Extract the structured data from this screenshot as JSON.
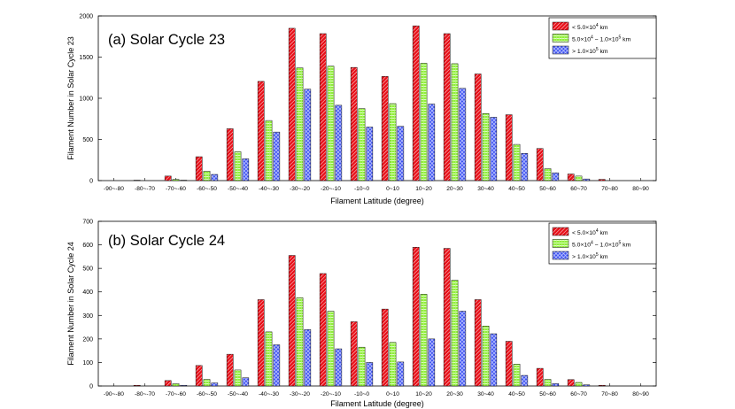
{
  "chart_data": [
    {
      "type": "bar",
      "title": "(a) Solar Cycle 23",
      "xlabel": "Filament Latitude (degree)",
      "ylabel": "Filament Number in Solar Cycle 23",
      "ylim": [
        0,
        2000
      ],
      "yticks": [
        0,
        500,
        1000,
        1500,
        2000
      ],
      "grid": false,
      "legend_position": "top-right",
      "categories": [
        "-90~-80",
        "-80~-70",
        "-70~-60",
        "-60~-50",
        "-50~-40",
        "-40~-30",
        "-30~-20",
        "-20~-10",
        "-10~0",
        "0~10",
        "10~20",
        "20~30",
        "30~40",
        "40~50",
        "50~60",
        "60~70",
        "70~80",
        "80~90"
      ],
      "series": [
        {
          "name": "< 5.0×10^4 km",
          "legend_main": "< 5.0×10",
          "legend_sup": "4",
          "legend_tail": " km",
          "color": "#e8111a",
          "hatch": "diag",
          "values": [
            0,
            5,
            55,
            290,
            630,
            1205,
            1850,
            1785,
            1375,
            1265,
            1880,
            1785,
            1295,
            800,
            390,
            80,
            15,
            0
          ]
        },
        {
          "name": "5.0×10^4 ~ 1.0×10^5 km",
          "legend_main": "5.0×10",
          "legend_sup": "4",
          "legend_mid": " ~ 1.0×10",
          "legend_sup2": "5",
          "legend_tail": " km",
          "color": "#90ee3a",
          "hatch": "horiz",
          "values": [
            0,
            0,
            15,
            115,
            350,
            730,
            1370,
            1390,
            875,
            935,
            1425,
            1420,
            815,
            440,
            145,
            55,
            0,
            0
          ]
        },
        {
          "name": "> 1.0×10^5 km",
          "legend_main": "> 1.0×10",
          "legend_sup": "5",
          "legend_tail": " km",
          "color": "#3a4ef0",
          "hatch": "cross",
          "values": [
            0,
            0,
            5,
            75,
            265,
            590,
            1110,
            915,
            650,
            660,
            930,
            1120,
            770,
            330,
            95,
            20,
            0,
            0
          ]
        }
      ]
    },
    {
      "type": "bar",
      "title": "(b) Solar Cycle 24",
      "xlabel": "Filament Latitude (degree)",
      "ylabel": "Filament Number in Solar Cycle 24",
      "ylim": [
        0,
        700
      ],
      "yticks": [
        0,
        100,
        200,
        300,
        400,
        500,
        600,
        700
      ],
      "grid": false,
      "legend_position": "top-right",
      "categories": [
        "-90~-80",
        "-80~-70",
        "-70~-60",
        "-60~-50",
        "-50~-40",
        "-40~-30",
        "-30~-20",
        "-20~-10",
        "-10~0",
        "0~10",
        "10~20",
        "20~30",
        "30~40",
        "40~50",
        "50~60",
        "60~70",
        "70~80",
        "80~90"
      ],
      "series": [
        {
          "name": "< 5.0×10^4 km",
          "legend_main": "< 5.0×10",
          "legend_sup": "4",
          "legend_tail": " km",
          "color": "#e8111a",
          "hatch": "diag",
          "values": [
            0,
            3,
            23,
            87,
            135,
            367,
            555,
            478,
            273,
            327,
            590,
            585,
            367,
            190,
            75,
            27,
            3,
            0
          ]
        },
        {
          "name": "5.0×10^4 ~ 1.0×10^5 km",
          "legend_main": "5.0×10",
          "legend_sup": "4",
          "legend_mid": " ~ 1.0×10",
          "legend_sup2": "5",
          "legend_tail": " km",
          "color": "#90ee3a",
          "hatch": "horiz",
          "values": [
            0,
            0,
            10,
            28,
            68,
            230,
            375,
            318,
            165,
            185,
            390,
            450,
            255,
            93,
            28,
            15,
            0,
            0
          ]
        },
        {
          "name": "> 1.0×10^5 km",
          "legend_main": "> 1.0×10",
          "legend_sup": "5",
          "legend_tail": " km",
          "color": "#3a4ef0",
          "hatch": "cross",
          "values": [
            0,
            0,
            3,
            13,
            35,
            175,
            240,
            158,
            100,
            102,
            200,
            318,
            222,
            45,
            10,
            5,
            0,
            0
          ]
        }
      ]
    }
  ]
}
